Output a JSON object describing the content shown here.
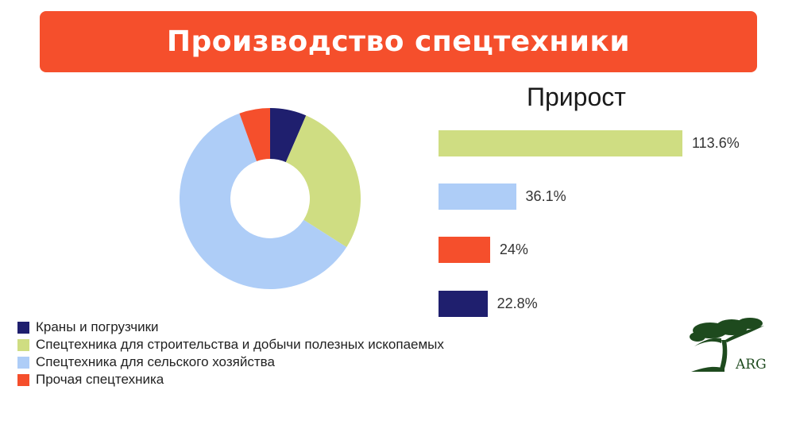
{
  "header": {
    "title": "Производство спецтехники",
    "color": "#f54f2c"
  },
  "chart_data": [
    {
      "type": "pie",
      "variant": "donut",
      "categories": [
        "Краны и погрузчики",
        "Спецтехника для строительства и добычи полезных ископаемых",
        "Спецтехника для сельского хозяйства",
        "Прочая спецтехника"
      ],
      "values": [
        6.5,
        27.5,
        60.5,
        5.5
      ],
      "colors": [
        "#1f1f6e",
        "#cfdd82",
        "#aecdf7",
        "#f54f2c"
      ],
      "legend": "bottom-left"
    },
    {
      "type": "bar",
      "orientation": "horizontal",
      "title": "Прирост",
      "values": [
        113.6,
        36.1,
        24,
        22.8
      ],
      "labels": [
        "113.6%",
        "36.1%",
        "24%",
        "22.8%"
      ],
      "colors": [
        "#cfdd82",
        "#aecdf7",
        "#f54f2c",
        "#1f1f6e"
      ]
    }
  ],
  "logo": {
    "text": "ARG",
    "color": "#1e4a1e"
  }
}
